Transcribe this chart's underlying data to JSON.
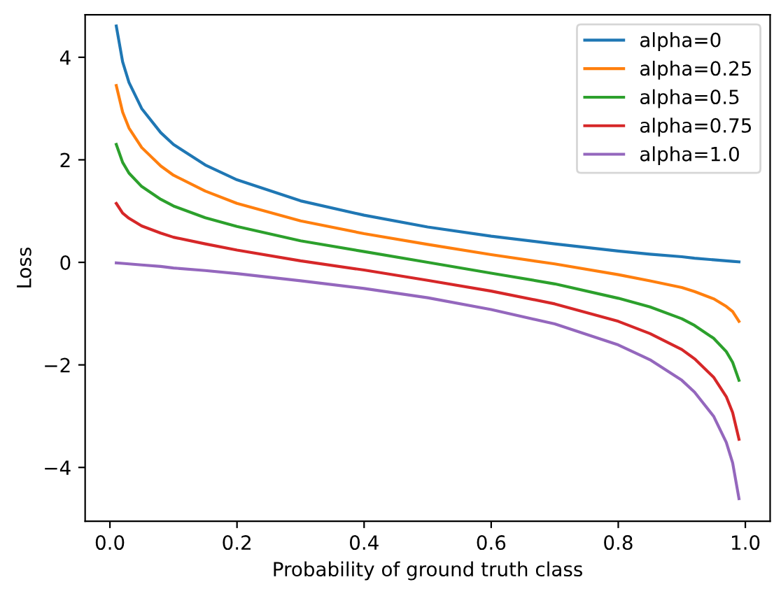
{
  "chart_data": {
    "type": "line",
    "xlabel": "Probability of ground truth class",
    "ylabel": "Loss",
    "x": [
      0.01,
      0.02,
      0.03,
      0.05,
      0.08,
      0.1,
      0.15,
      0.2,
      0.3,
      0.4,
      0.5,
      0.6,
      0.7,
      0.8,
      0.85,
      0.9,
      0.92,
      0.95,
      0.97,
      0.98,
      0.99
    ],
    "series": [
      {
        "name": "alpha=0",
        "color": "#1f77b4",
        "values": [
          4.61,
          3.91,
          3.51,
          3.0,
          2.53,
          2.3,
          1.9,
          1.61,
          1.2,
          0.92,
          0.69,
          0.51,
          0.36,
          0.22,
          0.16,
          0.11,
          0.08,
          0.05,
          0.03,
          0.02,
          0.01
        ]
      },
      {
        "name": "alpha=0.25",
        "color": "#ff7f0e",
        "values": [
          3.45,
          2.93,
          2.62,
          2.24,
          1.88,
          1.7,
          1.39,
          1.15,
          0.81,
          0.56,
          0.35,
          0.15,
          -0.03,
          -0.24,
          -0.36,
          -0.49,
          -0.57,
          -0.71,
          -0.86,
          -0.96,
          -1.15
        ]
      },
      {
        "name": "alpha=0.5",
        "color": "#2ca02c",
        "values": [
          2.3,
          1.95,
          1.74,
          1.48,
          1.23,
          1.1,
          0.87,
          0.7,
          0.42,
          0.21,
          0,
          -0.21,
          -0.42,
          -0.7,
          -0.87,
          -1.1,
          -1.23,
          -1.48,
          -1.74,
          -1.95,
          -2.3
        ]
      },
      {
        "name": "alpha=0.75",
        "color": "#d62728",
        "values": [
          1.15,
          0.96,
          0.86,
          0.71,
          0.57,
          0.49,
          0.36,
          0.24,
          0.03,
          -0.15,
          -0.35,
          -0.56,
          -0.81,
          -1.15,
          -1.39,
          -1.7,
          -1.88,
          -2.24,
          -2.62,
          -2.93,
          -3.45
        ]
      },
      {
        "name": "alpha=1.0",
        "color": "#9467bd",
        "values": [
          -0.01,
          -0.02,
          -0.03,
          -0.05,
          -0.08,
          -0.11,
          -0.16,
          -0.22,
          -0.36,
          -0.51,
          -0.69,
          -0.92,
          -1.2,
          -1.61,
          -1.9,
          -2.3,
          -2.53,
          -3.0,
          -3.51,
          -3.91,
          -4.61
        ]
      }
    ],
    "xlim": [
      -0.039,
      1.039
    ],
    "xticks": [
      {
        "value": 0,
        "label": "0.0"
      },
      {
        "value": 0.2,
        "label": "0.2"
      },
      {
        "value": 0.4,
        "label": "0.4"
      },
      {
        "value": 0.6,
        "label": "0.6"
      },
      {
        "value": 0.8,
        "label": "0.8"
      },
      {
        "value": 1,
        "label": "1.0"
      }
    ],
    "ylim": [
      -5.05,
      4.83
    ],
    "yticks": [
      {
        "value": -4,
        "label": "−4"
      },
      {
        "value": -2,
        "label": "−2"
      },
      0,
      2,
      4
    ],
    "legend": "top right",
    "grid": false,
    "marker": "none",
    "line_style": "solid"
  }
}
